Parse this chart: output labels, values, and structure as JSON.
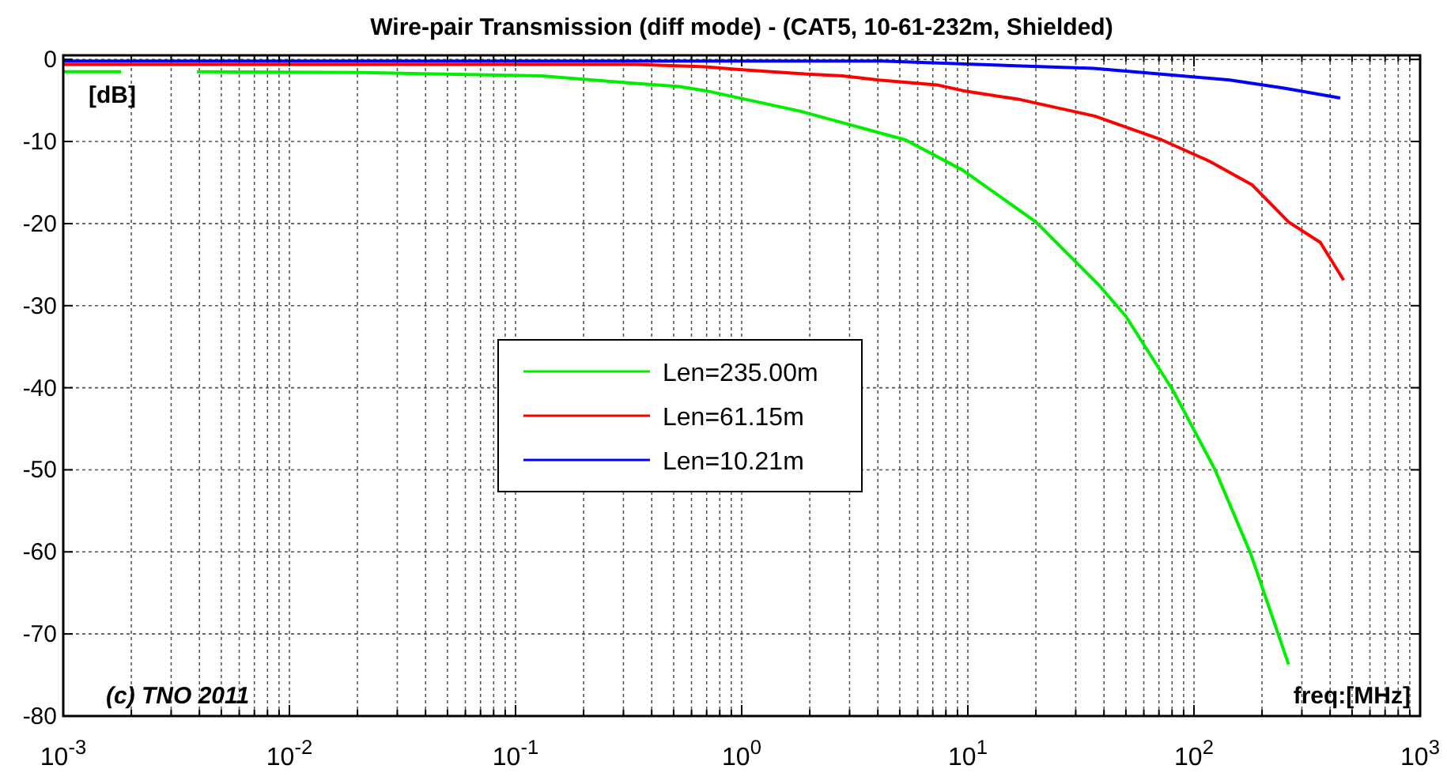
{
  "chart_data": {
    "type": "line",
    "title": "Wire-pair Transmission (diff mode) - (CAT5, 10-61-232m, Shielded)",
    "xlabel": "freq:[MHz]",
    "ylabel": "[dB]",
    "annotations": [
      "(c) TNO 2011"
    ],
    "log": "x",
    "grid": true,
    "legend": "center",
    "line_style": "solid",
    "xlim": [
      0.001,
      1000
    ],
    "ylim": [
      -80,
      0.5
    ],
    "xticks": [
      {
        "value": 0.001,
        "label": "10$^{-3}$"
      },
      {
        "value": 0.002,
        "label": null
      },
      {
        "value": 0.003,
        "label": null
      },
      {
        "value": 0.004,
        "label": null
      },
      {
        "value": 0.005,
        "label": null
      },
      {
        "value": 0.006,
        "label": null
      },
      {
        "value": 0.007,
        "label": null
      },
      {
        "value": 0.008,
        "label": null
      },
      {
        "value": 0.009,
        "label": null
      },
      {
        "value": 0.01,
        "label": "10$^{-2}$"
      },
      {
        "value": 0.02,
        "label": null
      },
      {
        "value": 0.03,
        "label": null
      },
      {
        "value": 0.04,
        "label": null
      },
      {
        "value": 0.05,
        "label": null
      },
      {
        "value": 0.06,
        "label": null
      },
      {
        "value": 0.07,
        "label": null
      },
      {
        "value": 0.08,
        "label": null
      },
      {
        "value": 0.09,
        "label": null
      },
      {
        "value": 0.1,
        "label": "10$^{-1}$"
      },
      {
        "value": 0.2,
        "label": null
      },
      {
        "value": 0.3,
        "label": null
      },
      {
        "value": 0.4,
        "label": null
      },
      {
        "value": 0.5,
        "label": null
      },
      {
        "value": 0.6,
        "label": null
      },
      {
        "value": 0.7,
        "label": null
      },
      {
        "value": 0.8,
        "label": null
      },
      {
        "value": 0.9,
        "label": null
      },
      {
        "value": 1,
        "label": "10$^{0}$"
      },
      {
        "value": 2,
        "label": null
      },
      {
        "value": 3,
        "label": null
      },
      {
        "value": 4,
        "label": null
      },
      {
        "value": 5,
        "label": null
      },
      {
        "value": 6,
        "label": null
      },
      {
        "value": 7,
        "label": null
      },
      {
        "value": 8,
        "label": null
      },
      {
        "value": 9,
        "label": null
      },
      {
        "value": 10,
        "label": "10$^{1}$"
      },
      {
        "value": 20,
        "label": null
      },
      {
        "value": 30,
        "label": null
      },
      {
        "value": 40,
        "label": null
      },
      {
        "value": 50,
        "label": null
      },
      {
        "value": 60,
        "label": null
      },
      {
        "value": 70,
        "label": null
      },
      {
        "value": 80,
        "label": null
      },
      {
        "value": 90,
        "label": null
      },
      {
        "value": 100,
        "label": "10$^{2}$"
      },
      {
        "value": 200,
        "label": null
      },
      {
        "value": 300,
        "label": null
      },
      {
        "value": 400,
        "label": null
      },
      {
        "value": 500,
        "label": null
      },
      {
        "value": 600,
        "label": null
      },
      {
        "value": 700,
        "label": null
      },
      {
        "value": 800,
        "label": null
      },
      {
        "value": 900,
        "label": null
      },
      {
        "value": 1000,
        "label": "10$^{3}$"
      }
    ],
    "yticks": [
      -80,
      -70,
      -60,
      -50,
      -40,
      -30,
      -20,
      -10,
      0
    ],
    "series": [
      {
        "name": "Len=235.00m",
        "color": "#00ee00",
        "x": [
          0.001,
          0.0018,
          0.0028,
          0.0039,
          0.021,
          0.13,
          0.22,
          0.33,
          0.53,
          0.69,
          1.81,
          5.3,
          9.5,
          20,
          38,
          50,
          81,
          124,
          178,
          262
        ],
        "values": [
          -1.5,
          -1.5,
          null,
          -1.5,
          -1.6,
          -2.0,
          -2.5,
          -2.9,
          -3.3,
          -3.8,
          -6.3,
          -9.8,
          -13.5,
          -19.8,
          -27.5,
          -31.3,
          -40.4,
          -50,
          -60.2,
          -73.7
        ]
      },
      {
        "name": "Len=61.15m",
        "color": "#ff0000",
        "x": [
          0.001,
          0.34,
          0.69,
          0.95,
          1.72,
          2.79,
          4.04,
          7.3,
          9.5,
          17.1,
          36.4,
          72,
          117,
          181,
          262,
          362,
          459
        ],
        "values": [
          -0.6,
          -0.6,
          -0.9,
          -1.2,
          -1.7,
          -2.0,
          -2.5,
          -3.1,
          -3.8,
          -4.9,
          -6.9,
          -9.8,
          -12.4,
          -15.3,
          -19.8,
          -22.3,
          -26.9
        ]
      },
      {
        "name": "Len=10.21m",
        "color": "#0000ff",
        "x": [
          0.001,
          4.2,
          36,
          65,
          144,
          250,
          443
        ],
        "values": [
          -0.2,
          -0.2,
          -1.1,
          -1.7,
          -2.5,
          -3.5,
          -4.7
        ]
      }
    ]
  }
}
